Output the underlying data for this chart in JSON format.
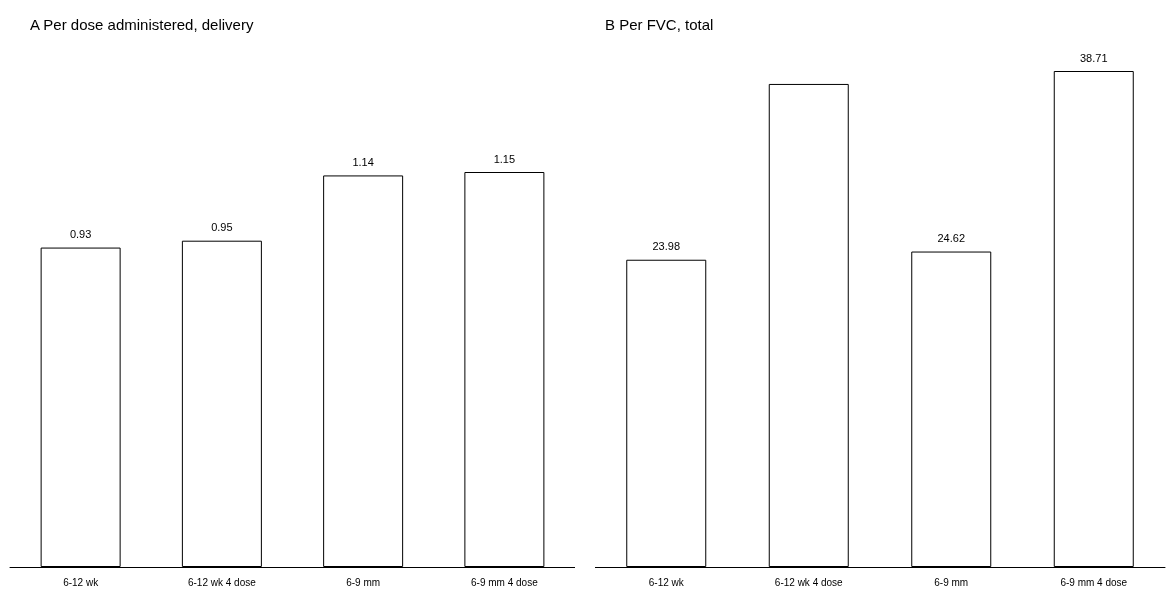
{
  "chart_data": [
    {
      "type": "bar",
      "title": "A Per dose administered, delivery",
      "categories": [
        "6-12 wk",
        "6-12 wk 4 dose",
        "6-9 mm",
        "6-9 mm 4 dose"
      ],
      "values": [
        0.93,
        0.95,
        1.14,
        1.15
      ],
      "color": "#ffffff",
      "data_labels": true
    },
    {
      "type": "bar",
      "title": "B Per FVC, total",
      "categories": [
        "6-12 wk",
        "6-12 wk 4 dose",
        "6-9 mm",
        "6-9 mm 4 dose"
      ],
      "values": [
        23.98,
        37.7,
        24.62,
        38.71
      ],
      "value_labels": [
        "23.98",
        null,
        "24.62",
        "38.71"
      ],
      "color": "#ffffff"
    }
  ]
}
